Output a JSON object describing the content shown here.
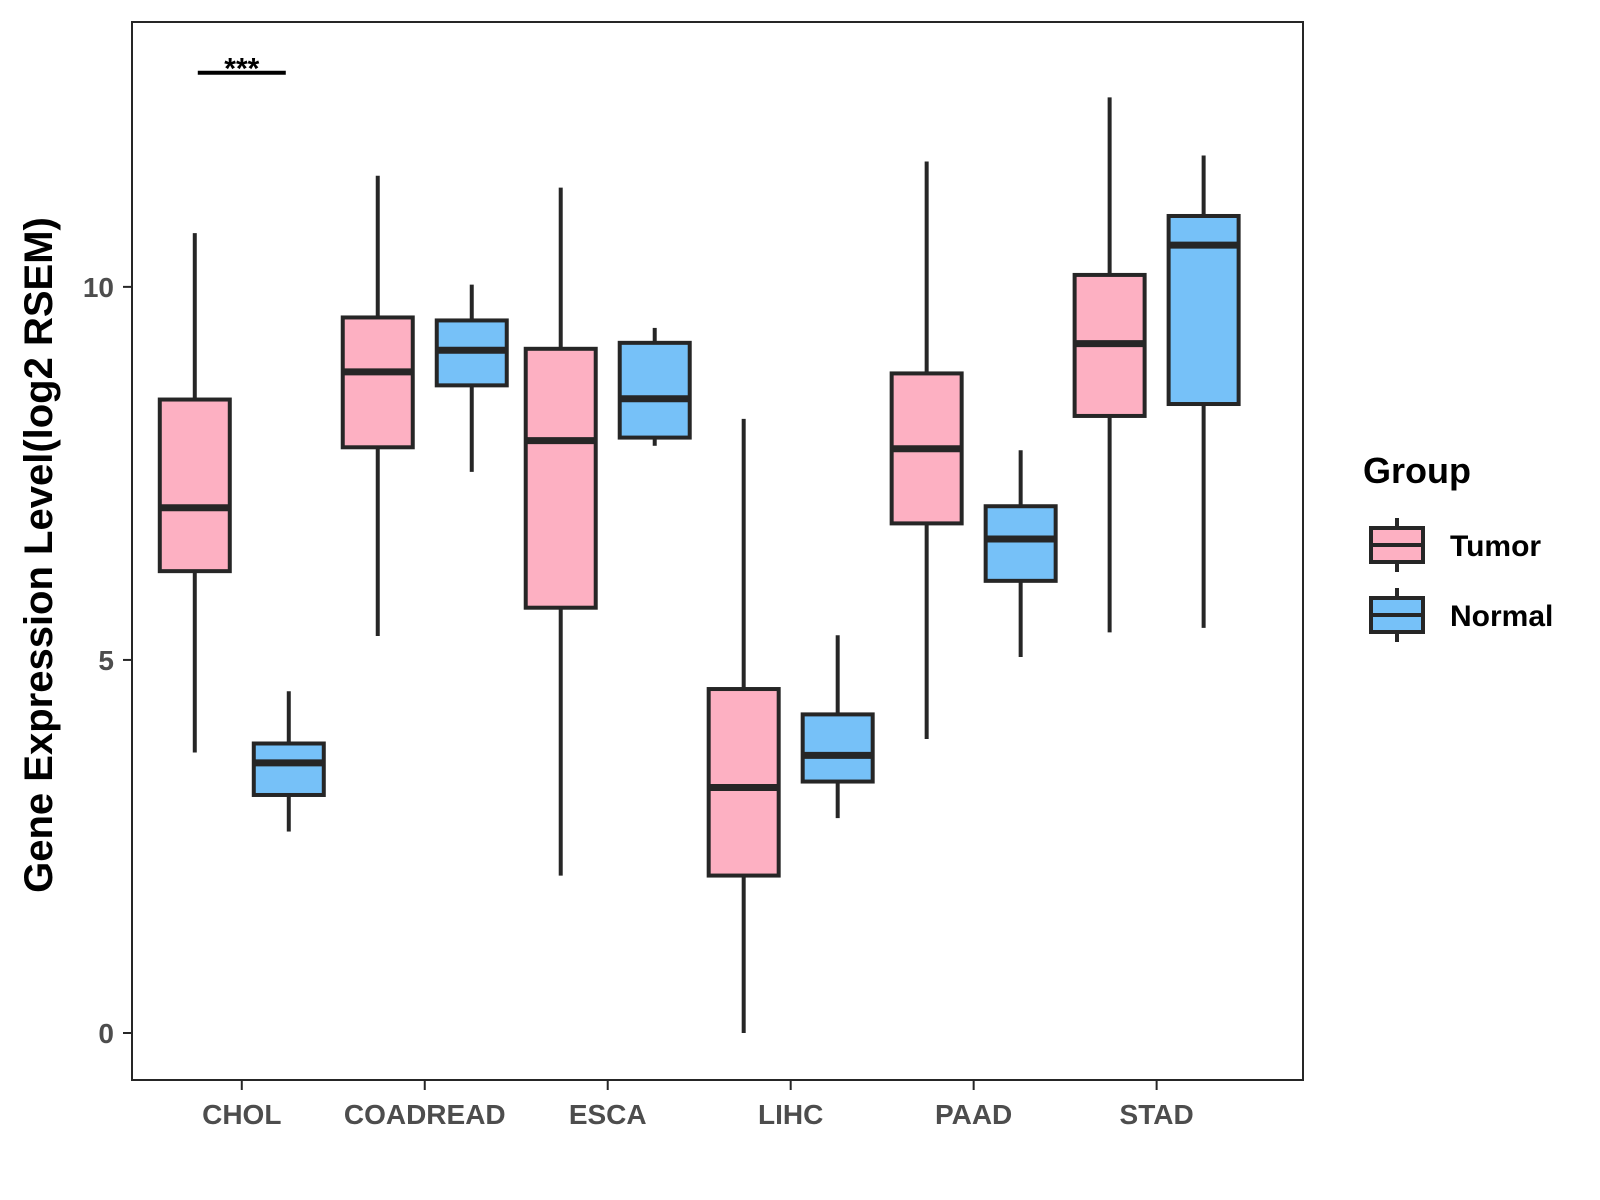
{
  "chart_data": {
    "type": "box",
    "title": "",
    "xlabel": "",
    "ylabel": "Gene Expression Level(log2 RSEM)",
    "ylim": [
      -0.63,
      13.55
    ],
    "yticks": [
      0,
      5,
      10
    ],
    "categories": [
      "CHOL",
      "COADREAD",
      "ESCA",
      "LIHC",
      "PAAD",
      "STAD"
    ],
    "legend": {
      "title": "Group",
      "position": "right",
      "entries": [
        "Tumor",
        "Normal"
      ]
    },
    "colors": {
      "Tumor": "#FDB0C2",
      "Normal": "#76C1F8",
      "stroke": "#262626",
      "panel_border": "#262626"
    },
    "series": [
      {
        "name": "Tumor",
        "boxes": [
          {
            "category": "CHOL",
            "min": 3.76,
            "q1": 6.19,
            "median": 7.04,
            "q3": 8.49,
            "max": 10.72
          },
          {
            "category": "COADREAD",
            "min": 5.32,
            "q1": 7.85,
            "median": 8.86,
            "q3": 9.59,
            "max": 11.49
          },
          {
            "category": "ESCA",
            "min": 2.11,
            "q1": 5.7,
            "median": 7.94,
            "q3": 9.17,
            "max": 11.33
          },
          {
            "category": "LIHC",
            "min": 0.0,
            "q1": 2.11,
            "median": 3.29,
            "q3": 4.61,
            "max": 8.23
          },
          {
            "category": "PAAD",
            "min": 3.94,
            "q1": 6.83,
            "median": 7.83,
            "q3": 8.84,
            "max": 11.68
          },
          {
            "category": "STAD",
            "min": 5.37,
            "q1": 8.27,
            "median": 9.24,
            "q3": 10.16,
            "max": 12.54
          }
        ]
      },
      {
        "name": "Normal",
        "boxes": [
          {
            "category": "CHOL",
            "min": 2.7,
            "q1": 3.19,
            "median": 3.62,
            "q3": 3.88,
            "max": 4.58
          },
          {
            "category": "COADREAD",
            "min": 7.52,
            "q1": 8.68,
            "median": 9.15,
            "q3": 9.55,
            "max": 10.03
          },
          {
            "category": "ESCA",
            "min": 7.87,
            "q1": 7.98,
            "median": 8.5,
            "q3": 9.25,
            "max": 9.45
          },
          {
            "category": "LIHC",
            "min": 2.88,
            "q1": 3.37,
            "median": 3.72,
            "q3": 4.27,
            "max": 5.33
          },
          {
            "category": "PAAD",
            "min": 5.04,
            "q1": 6.06,
            "median": 6.62,
            "q3": 7.06,
            "max": 7.81
          },
          {
            "category": "STAD",
            "min": 5.43,
            "q1": 8.43,
            "median": 10.56,
            "q3": 10.95,
            "max": 11.76
          }
        ]
      }
    ],
    "annotations": [
      {
        "category": "CHOL",
        "text": "***",
        "y": 12.87
      }
    ]
  }
}
